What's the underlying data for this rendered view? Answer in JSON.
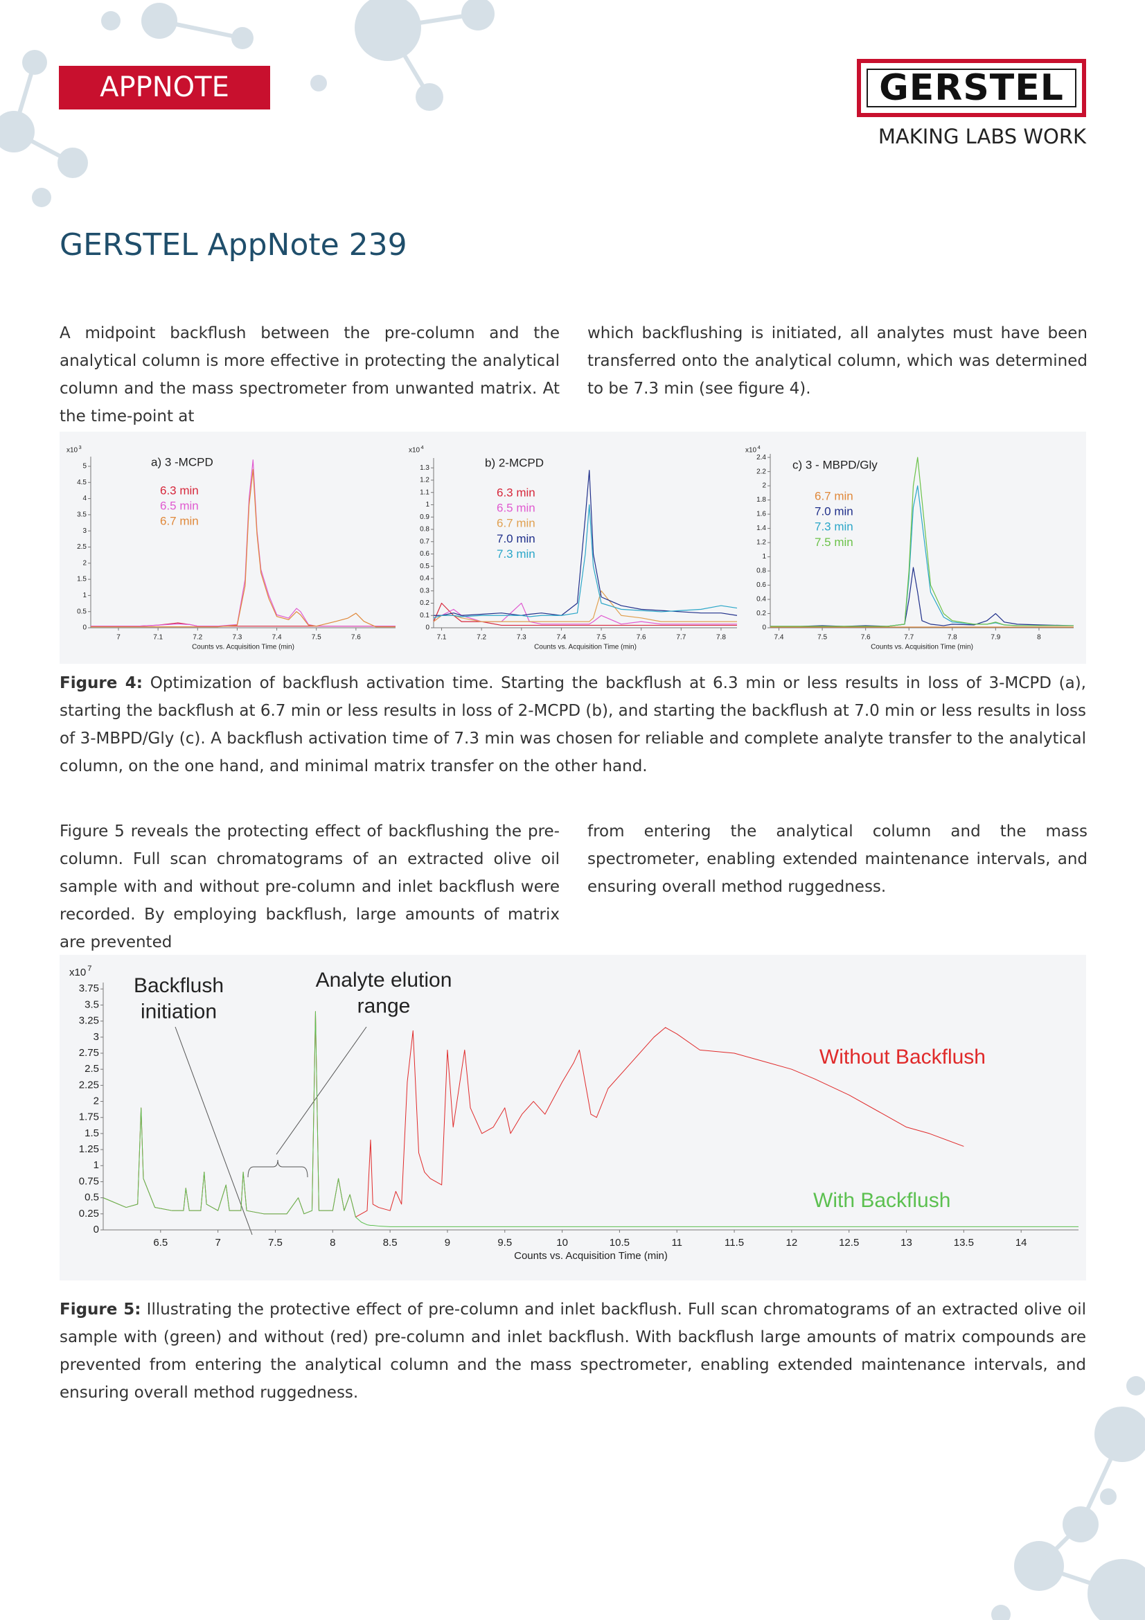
{
  "header": {
    "badge": "APPNOTE",
    "logo": "GERSTEL",
    "tagline": "MAKING LABS WORK"
  },
  "title": "GERSTEL AppNote 239",
  "paragraph_1": {
    "left": "A midpoint backflush between the pre-column and the analytical column is more effective in protecting the analytical column and the mass spectrometer from unwanted matrix. At the time-point at",
    "right": "which backflushing is initiated, all analytes must have been transferred onto the analytical column, which was determined to be 7.3 min (see figure 4)."
  },
  "figure_4": {
    "caption_label": "Figure 4:",
    "caption": "Optimization of backflush activation time. Starting the backflush at 6.3 min or less results in loss of 3-MCPD (a), starting the backflush at 6.7 min or less results in loss of 2-MCPD (b), and starting the backflush at 7.0 min or less results in loss of 3-MBPD/Gly (c). A backflush activation time of 7.3 min was chosen for reliable and complete analyte transfer to the analytical column, on the one hand, and minimal matrix transfer on the other hand."
  },
  "paragraph_2": {
    "left": "Figure 5 reveals the protecting effect of backflushing the pre-column. Full scan chromatograms of an extracted olive oil sample with and without pre-column and inlet backflush were recorded. By employing backflush, large amounts of matrix are prevented",
    "right": "from entering the analytical column and the mass spectrometer, enabling extended maintenance intervals, and ensuring overall method ruggedness."
  },
  "figure_5": {
    "caption_label": "Figure 5:",
    "caption": "Illustrating the protective effect of pre-column and inlet backflush. Full scan chromatograms of an extracted olive oil sample with (green) and without (red) pre-column and inlet backflush. With backflush large amounts of matrix compounds are prevented from entering the analytical column and the mass spectrometer, enabling extended maintenance intervals, and ensuring overall method ruggedness."
  },
  "chart_data": [
    {
      "type": "line",
      "title": "a) 3 -MCPD",
      "y_scale_label": "x10",
      "y_scale_exponent": "3",
      "x_label": "Counts vs. Acquisition Time (min)",
      "legend": "upper left",
      "xlim": [
        6.93,
        7.7
      ],
      "xticks": [
        7,
        7.1,
        7.2,
        7.3,
        7.4,
        7.5,
        7.6
      ],
      "ylim": [
        0,
        5.3
      ],
      "yticks": [
        0,
        0.5,
        1,
        1.5,
        2,
        2.5,
        3,
        3.5,
        4,
        4.5,
        5
      ],
      "x": [
        6.93,
        7.0,
        7.05,
        7.1,
        7.15,
        7.18,
        7.2,
        7.25,
        7.3,
        7.32,
        7.33,
        7.34,
        7.35,
        7.36,
        7.38,
        7.4,
        7.43,
        7.45,
        7.46,
        7.48,
        7.5,
        7.55,
        7.58,
        7.6,
        7.62,
        7.65,
        7.7
      ],
      "series": [
        {
          "name": "6.3 min",
          "color": "#d6273b",
          "values": [
            0.05,
            0.05,
            0.05,
            0.08,
            0.15,
            0.1,
            0.05,
            0.05,
            0.05,
            0.05,
            0.05,
            0.05,
            0.05,
            0.05,
            0.05,
            0.05,
            0.05,
            0.05,
            0.05,
            0.05,
            0.05,
            0.05,
            0.05,
            0.05,
            0.05,
            0.05,
            0.05
          ]
        },
        {
          "name": "6.5 min",
          "color": "#e05ad0",
          "values": [
            0.05,
            0.05,
            0.05,
            0.08,
            0.12,
            0.1,
            0.05,
            0.05,
            0.1,
            1.5,
            4,
            5.2,
            3,
            1.8,
            1,
            0.4,
            0.3,
            0.6,
            0.5,
            0.1,
            0.05,
            0.05,
            0.05,
            0.05,
            0.05,
            0.05,
            0.05
          ]
        },
        {
          "name": "6.7 min",
          "color": "#e0883a",
          "values": [
            0.03,
            0.03,
            0.03,
            0.03,
            0.03,
            0.03,
            0.03,
            0.03,
            0.08,
            1.3,
            3.8,
            4.9,
            2.9,
            1.7,
            0.9,
            0.35,
            0.25,
            0.5,
            0.4,
            0.08,
            0.05,
            0.2,
            0.3,
            0.45,
            0.2,
            0.03,
            0.03
          ]
        }
      ]
    },
    {
      "type": "line",
      "title": "b) 2-MCPD",
      "y_scale_label": "x10",
      "y_scale_exponent": "4",
      "x_label": "Counts vs. Acquisition Time (min)",
      "legend": "upper left",
      "xlim": [
        7.08,
        7.84
      ],
      "xticks": [
        7.1,
        7.2,
        7.3,
        7.4,
        7.5,
        7.6,
        7.7,
        7.8
      ],
      "ylim": [
        0,
        1.38
      ],
      "yticks": [
        0,
        0.1,
        0.2,
        0.3,
        0.4,
        0.5,
        0.6,
        0.7,
        0.8,
        0.9,
        1,
        1.1,
        1.2,
        1.3
      ],
      "x": [
        7.08,
        7.1,
        7.13,
        7.15,
        7.2,
        7.25,
        7.3,
        7.32,
        7.35,
        7.4,
        7.44,
        7.46,
        7.47,
        7.48,
        7.5,
        7.55,
        7.6,
        7.65,
        7.7,
        7.75,
        7.8,
        7.84
      ],
      "series": [
        {
          "name": "6.3 min",
          "color": "#d6273b",
          "values": [
            0.05,
            0.2,
            0.1,
            0.05,
            0.05,
            0.02,
            0.02,
            0.02,
            0.02,
            0.02,
            0.02,
            0.02,
            0.02,
            0.02,
            0.02,
            0.02,
            0.02,
            0.02,
            0.02,
            0.02,
            0.02,
            0.02
          ]
        },
        {
          "name": "6.5 min",
          "color": "#e05ad0",
          "values": [
            0.05,
            0.1,
            0.15,
            0.1,
            0.05,
            0.05,
            0.2,
            0.05,
            0.03,
            0.03,
            0.03,
            0.03,
            0.03,
            0.05,
            0.1,
            0.03,
            0.05,
            0.03,
            0.03,
            0.03,
            0.03,
            0.03
          ]
        },
        {
          "name": "6.7 min",
          "color": "#e0a050",
          "values": [
            0.05,
            0.1,
            0.1,
            0.08,
            0.05,
            0.05,
            0.05,
            0.05,
            0.05,
            0.05,
            0.05,
            0.05,
            0.05,
            0.08,
            0.3,
            0.1,
            0.08,
            0.05,
            0.05,
            0.05,
            0.05,
            0.05
          ]
        },
        {
          "name": "7.0 min",
          "color": "#1f2f8a",
          "values": [
            0.1,
            0.1,
            0.12,
            0.1,
            0.11,
            0.12,
            0.1,
            0.11,
            0.12,
            0.1,
            0.2,
            0.9,
            1.28,
            0.6,
            0.25,
            0.18,
            0.15,
            0.14,
            0.13,
            0.12,
            0.12,
            0.1
          ]
        },
        {
          "name": "7.3 min",
          "color": "#2aa6c8",
          "values": [
            0.08,
            0.1,
            0.1,
            0.09,
            0.1,
            0.1,
            0.1,
            0.09,
            0.1,
            0.1,
            0.12,
            0.6,
            1.0,
            0.5,
            0.2,
            0.15,
            0.14,
            0.13,
            0.14,
            0.15,
            0.18,
            0.16
          ]
        }
      ]
    },
    {
      "type": "line",
      "title": "c) 3 - MBPD/Gly",
      "y_scale_label": "x10",
      "y_scale_exponent": "4",
      "x_label": "Counts vs. Acquisition Time (min)",
      "legend": "upper left",
      "xlim": [
        7.38,
        8.08
      ],
      "xticks": [
        7.4,
        7.5,
        7.6,
        7.7,
        7.8,
        7.9,
        8
      ],
      "ylim": [
        0,
        2.45
      ],
      "yticks": [
        0,
        0.2,
        0.4,
        0.6,
        0.8,
        1,
        1.2,
        1.4,
        1.6,
        1.8,
        2,
        2.2,
        2.4
      ],
      "x": [
        7.38,
        7.45,
        7.5,
        7.55,
        7.6,
        7.65,
        7.69,
        7.7,
        7.71,
        7.72,
        7.73,
        7.75,
        7.78,
        7.8,
        7.85,
        7.88,
        7.9,
        7.92,
        7.95,
        8.0,
        8.08
      ],
      "series": [
        {
          "name": "6.7 min",
          "color": "#e0883a",
          "values": [
            0.01,
            0.01,
            0.01,
            0.01,
            0.01,
            0.01,
            0.01,
            0.01,
            0.01,
            0.01,
            0.01,
            0.01,
            0.01,
            0.01,
            0.01,
            0.01,
            0.01,
            0.01,
            0.01,
            0.01,
            0.01
          ]
        },
        {
          "name": "7.0 min",
          "color": "#1f2f8a",
          "values": [
            0.02,
            0.02,
            0.03,
            0.02,
            0.03,
            0.02,
            0.05,
            0.4,
            0.85,
            0.5,
            0.1,
            0.05,
            0.03,
            0.05,
            0.04,
            0.1,
            0.2,
            0.08,
            0.05,
            0.04,
            0.03
          ]
        },
        {
          "name": "7.3 min",
          "color": "#2aa6c8",
          "values": [
            0.02,
            0.02,
            0.02,
            0.02,
            0.02,
            0.02,
            0.05,
            0.7,
            1.7,
            2.0,
            1.5,
            0.5,
            0.15,
            0.08,
            0.05,
            0.05,
            0.07,
            0.04,
            0.03,
            0.03,
            0.03
          ]
        },
        {
          "name": "7.5 min",
          "color": "#6cc24a",
          "values": [
            0.02,
            0.02,
            0.02,
            0.02,
            0.02,
            0.02,
            0.05,
            0.8,
            2.0,
            2.4,
            1.8,
            0.6,
            0.2,
            0.1,
            0.05,
            0.05,
            0.08,
            0.04,
            0.03,
            0.03,
            0.03
          ]
        }
      ]
    },
    {
      "type": "line",
      "y_scale_label": "x10",
      "y_scale_exponent": "7",
      "x_label": "Counts vs. Acquisition Time (min)",
      "legend": "inline",
      "annotations": [
        {
          "lines": [
            "Backflush",
            "initiation"
          ]
        },
        {
          "lines": [
            "Analyte elution",
            "range"
          ]
        }
      ],
      "xlim": [
        6.0,
        14.5
      ],
      "xticks": [
        6.5,
        7,
        7.5,
        8,
        8.5,
        9,
        9.5,
        10,
        10.5,
        11,
        11.5,
        12,
        12.5,
        13,
        13.5,
        14
      ],
      "ylim": [
        0,
        3.85
      ],
      "yticks": [
        0,
        0.25,
        0.5,
        0.75,
        1,
        1.25,
        1.5,
        1.75,
        2,
        2.25,
        2.5,
        2.75,
        3,
        3.25,
        3.5,
        3.75
      ],
      "x": [
        6.0,
        6.2,
        6.3,
        6.33,
        6.35,
        6.45,
        6.6,
        6.7,
        6.72,
        6.75,
        6.85,
        6.88,
        6.9,
        7.0,
        7.07,
        7.1,
        7.2,
        7.22,
        7.25,
        7.4,
        7.6,
        7.7,
        7.75,
        7.82,
        7.85,
        7.88,
        8.0,
        8.05,
        8.1,
        8.15,
        8.2,
        8.25,
        8.3,
        8.33,
        8.35,
        8.4,
        8.5,
        8.55,
        8.6,
        8.65,
        8.7,
        8.75,
        8.8,
        8.85,
        8.95,
        9.0,
        9.05,
        9.15,
        9.2,
        9.3,
        9.4,
        9.5,
        9.55,
        9.65,
        9.75,
        9.85,
        10.0,
        10.1,
        10.15,
        10.2,
        10.25,
        10.3,
        10.4,
        10.6,
        10.8,
        10.9,
        11.0,
        11.2,
        11.5,
        11.8,
        12.0,
        12.2,
        12.5,
        12.8,
        13.0,
        13.2,
        13.5,
        14.0,
        14.5
      ],
      "series": [
        {
          "name": "Without Backflush",
          "color": "#e02a2a",
          "values": [
            0.5,
            0.35,
            0.4,
            1.9,
            0.8,
            0.35,
            0.3,
            0.3,
            0.65,
            0.3,
            0.3,
            0.9,
            0.4,
            0.3,
            0.7,
            0.3,
            0.3,
            0.9,
            0.3,
            0.25,
            0.25,
            0.5,
            0.25,
            0.3,
            3.4,
            0.3,
            0.3,
            0.8,
            0.3,
            0.55,
            0.2,
            0.25,
            0.3,
            1.4,
            0.4,
            0.35,
            0.3,
            0.6,
            0.4,
            2.3,
            3.1,
            1.2,
            0.9,
            0.8,
            0.7,
            2.8,
            1.6,
            2.8,
            1.9,
            1.5,
            1.6,
            1.9,
            1.5,
            1.8,
            2.0,
            1.8,
            2.3,
            2.6,
            2.8,
            2.3,
            1.8,
            1.75,
            2.2,
            2.6,
            3.0,
            3.15,
            3.05,
            2.8,
            2.75,
            2.6,
            2.5,
            2.35,
            2.1,
            1.8,
            1.6,
            1.5,
            1.3,
            null,
            null
          ]
        },
        {
          "name": "With Backflush",
          "color": "#5cc050",
          "values": [
            0.5,
            0.35,
            0.4,
            1.9,
            0.8,
            0.35,
            0.3,
            0.3,
            0.65,
            0.3,
            0.3,
            0.9,
            0.4,
            0.3,
            0.7,
            0.3,
            0.3,
            0.9,
            0.3,
            0.25,
            0.25,
            0.5,
            0.25,
            0.3,
            3.4,
            0.3,
            0.3,
            0.8,
            0.3,
            0.55,
            0.2,
            0.12,
            0.08,
            0.07,
            0.07,
            0.06,
            0.05,
            0.05,
            0.05,
            0.05,
            0.05,
            0.05,
            0.05,
            0.05,
            0.05,
            0.05,
            0.05,
            0.05,
            0.05,
            0.05,
            0.05,
            0.05,
            0.05,
            0.05,
            0.05,
            0.05,
            0.05,
            0.05,
            0.05,
            0.05,
            0.05,
            0.05,
            0.05,
            0.05,
            0.05,
            0.05,
            0.05,
            0.05,
            0.05,
            0.05,
            0.05,
            0.05,
            0.05,
            0.05,
            0.05,
            0.05,
            0.05,
            0.05,
            0.05
          ]
        }
      ]
    }
  ]
}
